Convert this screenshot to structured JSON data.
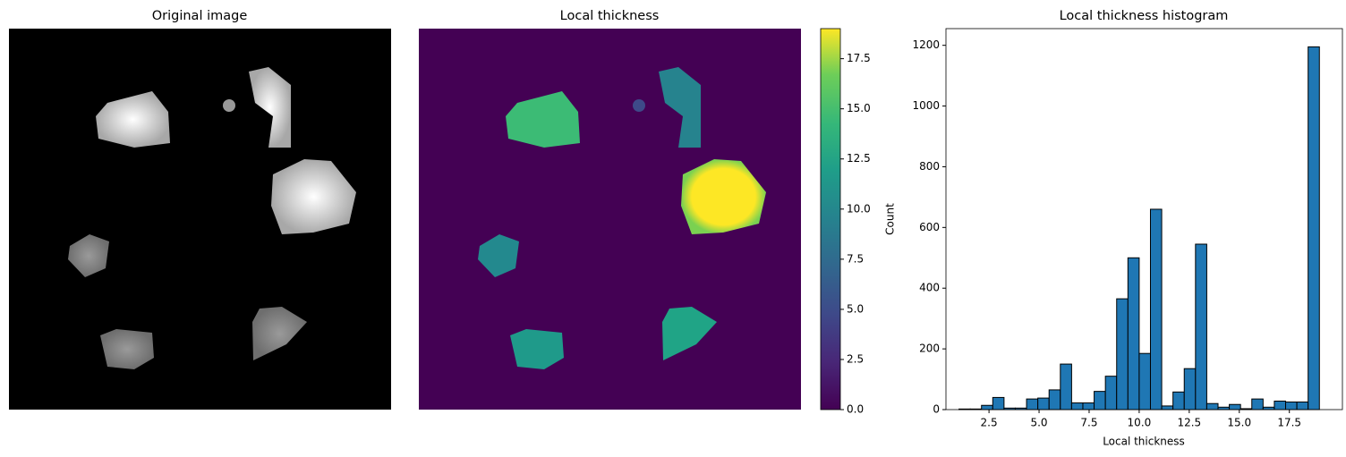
{
  "chart_data": [
    {
      "type": "image",
      "title": "Original image"
    },
    {
      "type": "heatmap",
      "title": "Local thickness",
      "colormap": "viridis",
      "colorbar": {
        "ylim": [
          0,
          19
        ],
        "yticks": [
          {
            "value": 0,
            "label": "0.0"
          },
          2.5,
          {
            "value": 5,
            "label": "5.0"
          },
          7.5,
          {
            "value": 10,
            "label": "10.0"
          },
          12.5,
          {
            "value": 15,
            "label": "15.0"
          },
          17.5
        ]
      }
    },
    {
      "type": "histogram",
      "title": "Local thickness histogram",
      "x_label": "Local thickness",
      "y_label": "Count",
      "color": "#1f77b4",
      "edgecolor": "#000000",
      "bins": [
        1.0,
        1.5625,
        2.125,
        2.6875,
        3.25,
        3.8125,
        4.375,
        4.9375,
        5.5,
        6.0625,
        6.625,
        7.1875,
        7.75,
        8.3125,
        8.875,
        9.4375,
        10.0,
        10.5625,
        11.125,
        11.6875,
        12.25,
        12.8125,
        13.375,
        13.9375,
        14.5,
        15.0625,
        15.625,
        16.1875,
        16.75,
        17.3125,
        17.875,
        18.4375,
        19.0
      ],
      "values": [
        2,
        2,
        14,
        40,
        5,
        5,
        35,
        38,
        65,
        150,
        22,
        22,
        60,
        110,
        365,
        500,
        185,
        660,
        12,
        58,
        135,
        545,
        20,
        8,
        17,
        3,
        35,
        8,
        28,
        25,
        25,
        1195
      ],
      "xlim": [
        0.35,
        20.15
      ],
      "ylim": [
        0,
        1255
      ],
      "xticks": [
        2.5,
        {
          "value": 5,
          "label": "5.0"
        },
        7.5,
        {
          "value": 10,
          "label": "10.0"
        },
        12.5,
        {
          "value": 15,
          "label": "15.0"
        },
        17.5
      ],
      "yticks": [
        0,
        200,
        400,
        600,
        800,
        1000,
        1200
      ]
    }
  ]
}
